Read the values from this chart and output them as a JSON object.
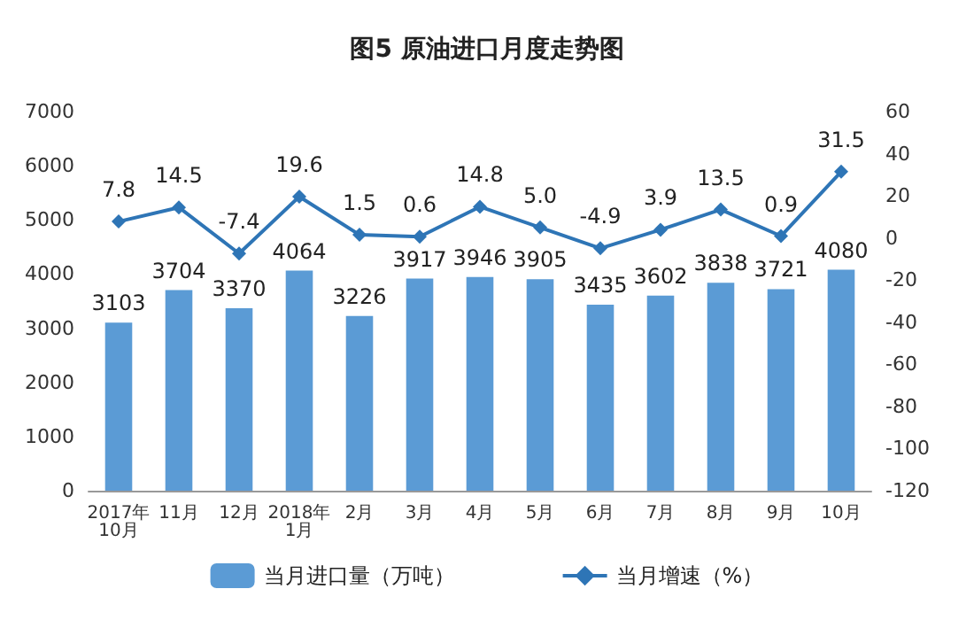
{
  "chart_data": {
    "type": "bar",
    "title": "图5 原油进口月度走势图",
    "categories": [
      "2017年\n10月",
      "11月",
      "12月",
      "2018年\n1月",
      "2月",
      "3月",
      "4月",
      "5月",
      "6月",
      "7月",
      "8月",
      "9月",
      "10月"
    ],
    "series": [
      {
        "name": "当月进口量（万吨）",
        "color": "#5b9bd5",
        "values": [
          3103,
          3704,
          3370,
          4064,
          3226,
          3917,
          3946,
          3905,
          3435,
          3602,
          3838,
          3721,
          4080
        ]
      },
      {
        "name": "当月增速（%）",
        "type": "line",
        "axis": "y2",
        "color": "#2e75b6",
        "values": [
          7.8,
          14.5,
          -7.4,
          19.6,
          1.5,
          0.6,
          14.8,
          5.0,
          -4.9,
          3.9,
          13.5,
          0.9,
          31.5
        ],
        "value_labels": [
          "7.8",
          "14.5",
          "-7.4",
          "19.6",
          "1.5",
          "0.6",
          "14.8",
          "5.0",
          "-4.9",
          "3.9",
          "13.5",
          "0.9",
          "31.5"
        ]
      }
    ],
    "ylim": [
      0,
      7000
    ],
    "yticks": [
      0,
      1000,
      2000,
      3000,
      4000,
      5000,
      6000,
      7000
    ],
    "y2lim": [
      -120,
      60
    ],
    "y2ticks": [
      -120,
      -100,
      -80,
      -60,
      -40,
      -20,
      0,
      20,
      40,
      60
    ],
    "data_labels": true,
    "legend": "bottom",
    "grid": false,
    "marker": "diamond",
    "line_style": "solid"
  }
}
